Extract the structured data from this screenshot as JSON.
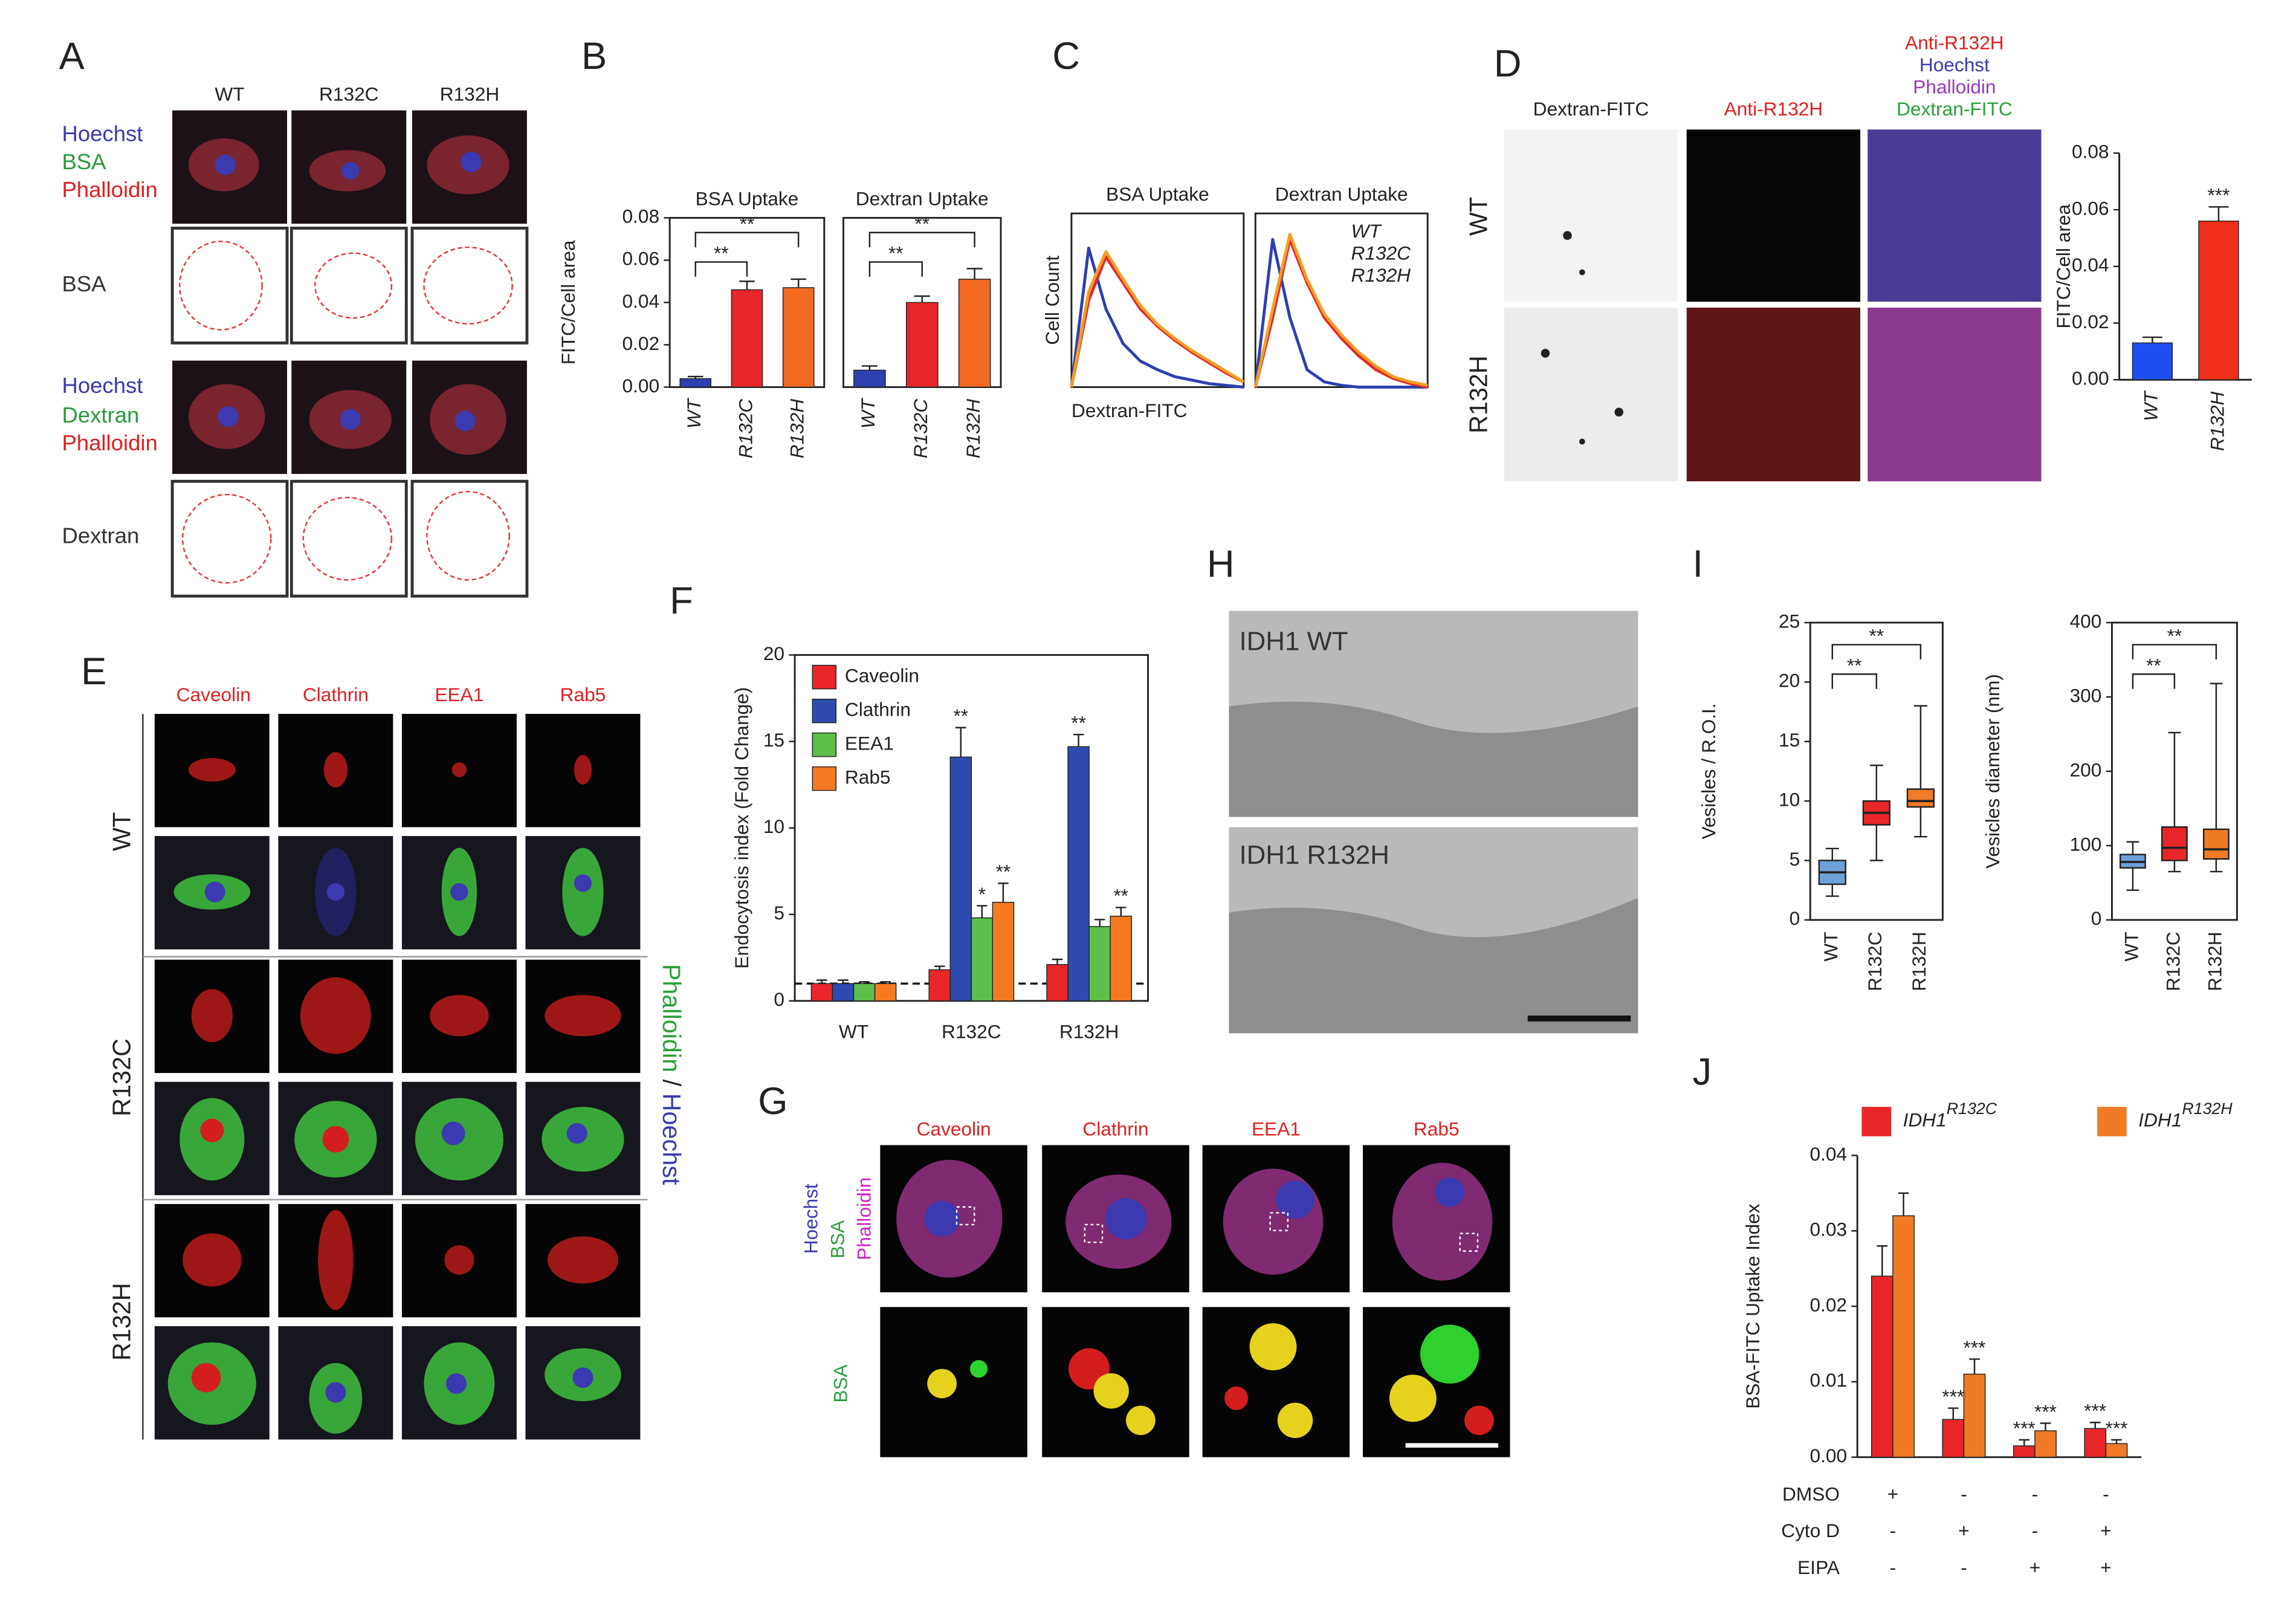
{
  "letters": [
    "A",
    "B",
    "C",
    "D",
    "E",
    "F",
    "G",
    "H",
    "I",
    "J"
  ],
  "panel_a": {
    "columns": [
      "WT",
      "R132C",
      "R132H"
    ],
    "rows": [
      [
        "Hoechst",
        "BSA",
        "Phalloidin"
      ],
      [
        "BSA"
      ],
      [
        "Hoechst",
        "Dextran",
        "Phalloidin"
      ],
      [
        "Dextran"
      ]
    ]
  },
  "panel_d": {
    "columns": [
      "Dextran-FITC",
      "Anti-R132H"
    ],
    "merged_column": [
      "Anti-R132H",
      "Hoechst",
      "Phalloidin",
      "Dextran-FITC"
    ],
    "rows": [
      "WT",
      "R132H"
    ]
  },
  "panel_e": {
    "columns": [
      "Caveolin",
      "Clathrin",
      "EEA1",
      "Rab5"
    ],
    "rows": [
      "WT",
      "R132C",
      "R132H"
    ],
    "side_label": [
      "Phalloidin",
      "/",
      "Hoechst"
    ]
  },
  "panel_g": {
    "columns": [
      "Caveolin",
      "Clathrin",
      "EEA1",
      "Rab5"
    ],
    "side_label": [
      "Hoechst",
      "BSA",
      "Phalloidin"
    ],
    "row_label": "BSA"
  },
  "panel_h": {
    "labels": [
      "IDH1 WT",
      "IDH1 R132H"
    ]
  },
  "chart_data": [
    {
      "type": "bar",
      "title": "BSA Uptake",
      "y_label": "FITC/Cell area",
      "categories": [
        "WT",
        "R132C",
        "R132H"
      ],
      "values": [
        0.004,
        0.046,
        0.047
      ],
      "errors": [
        0.001,
        0.004,
        0.004
      ],
      "colors": [
        "#2e3fb0",
        "#e8262a",
        "#f26a22"
      ],
      "ylim": [
        0,
        0.08
      ],
      "yticks": [
        {
          "value": 0,
          "label": "0.00"
        },
        {
          "value": 0.02,
          "label": "0.02"
        },
        {
          "value": 0.04,
          "label": "0.04"
        },
        {
          "value": 0.06,
          "label": "0.06"
        },
        {
          "value": 0.08,
          "label": "0.08"
        }
      ],
      "annotations": [
        "**",
        "**"
      ]
    },
    {
      "type": "bar",
      "title": "Dextran Uptake",
      "categories": [
        "WT",
        "R132C",
        "R132H"
      ],
      "values": [
        0.008,
        0.04,
        0.051
      ],
      "errors": [
        0.002,
        0.003,
        0.005
      ],
      "colors": [
        "#2e3fb0",
        "#e8262a",
        "#f26a22"
      ],
      "ylim": [
        0,
        0.08
      ],
      "annotations": [
        "**",
        "**"
      ]
    },
    {
      "type": "line",
      "title": "BSA Uptake",
      "y_label": "Cell Count",
      "x_label": "Dextran-FITC",
      "x": [
        0,
        1,
        2,
        3,
        4,
        5,
        6,
        7,
        8,
        9,
        10
      ],
      "xlim": [
        0,
        10
      ],
      "ylim": [
        0,
        1
      ],
      "series": [
        {
          "color": "#2e3fb0",
          "values": [
            0,
            0.8,
            0.45,
            0.25,
            0.15,
            0.1,
            0.06,
            0.04,
            0.02,
            0.01,
            0
          ]
        },
        {
          "color": "#e8262a",
          "values": [
            0,
            0.5,
            0.75,
            0.6,
            0.45,
            0.35,
            0.27,
            0.2,
            0.14,
            0.08,
            0.03
          ]
        },
        {
          "color": "#f2a022",
          "values": [
            0,
            0.55,
            0.78,
            0.62,
            0.47,
            0.36,
            0.28,
            0.21,
            0.15,
            0.09,
            0.03
          ]
        }
      ]
    },
    {
      "type": "line",
      "title": "Dextran Uptake",
      "x": [
        0,
        1,
        2,
        3,
        4,
        5,
        6,
        7,
        8,
        9,
        10
      ],
      "xlim": [
        0,
        10
      ],
      "ylim": [
        0,
        1
      ],
      "series": [
        {
          "name": "WT",
          "color": "#2e3fb0",
          "values": [
            0,
            0.85,
            0.4,
            0.1,
            0.03,
            0.01,
            0,
            0,
            0,
            0,
            0
          ]
        },
        {
          "name": "R132C",
          "color": "#e8262a",
          "values": [
            0,
            0.4,
            0.85,
            0.6,
            0.4,
            0.28,
            0.18,
            0.1,
            0.05,
            0.02,
            0
          ]
        },
        {
          "name": "R132H",
          "color": "#f2a022",
          "values": [
            0,
            0.45,
            0.88,
            0.62,
            0.42,
            0.3,
            0.2,
            0.12,
            0.06,
            0.03,
            0.01
          ]
        }
      ]
    },
    {
      "type": "bar",
      "y_label": "FITC/Cell area",
      "categories": [
        "WT",
        "R132H"
      ],
      "values": [
        0.013,
        0.056
      ],
      "errors": [
        0.002,
        0.005
      ],
      "colors": [
        "#1f4ef0",
        "#f0301c"
      ],
      "significance": [
        null,
        "***"
      ],
      "ylim": [
        0,
        0.08
      ],
      "yticks": [
        {
          "value": 0,
          "label": "0.00"
        },
        {
          "value": 0.02,
          "label": "0.02"
        },
        {
          "value": 0.04,
          "label": "0.04"
        },
        {
          "value": 0.06,
          "label": "0.06"
        },
        {
          "value": 0.08,
          "label": "0.08"
        }
      ]
    },
    {
      "type": "bar",
      "y_label": "Endocytosis index (Fold Change)",
      "categories": [
        "WT",
        "R132C",
        "R132H"
      ],
      "reference_line": 1,
      "ylim": [
        0,
        20
      ],
      "yticks": [
        0,
        5,
        10,
        15,
        20
      ],
      "series": [
        {
          "name": "Caveolin",
          "color": "#e8262a",
          "values": [
            1,
            1.8,
            2.1
          ],
          "errors": [
            0.2,
            0.2,
            0.3
          ]
        },
        {
          "name": "Clathrin",
          "color": "#2e4bb0",
          "values": [
            1,
            14.1,
            14.7
          ],
          "errors": [
            0.2,
            1.7,
            0.7
          ],
          "significance": [
            null,
            "**",
            "**"
          ]
        },
        {
          "name": "EEA1",
          "color": "#5cc04a",
          "values": [
            1,
            4.8,
            4.3
          ],
          "errors": [
            0.1,
            0.7,
            0.4
          ],
          "significance": [
            null,
            "*",
            null
          ]
        },
        {
          "name": "Rab5",
          "color": "#f57a22",
          "values": [
            1,
            5.7,
            4.9
          ],
          "errors": [
            0.1,
            1.1,
            0.5
          ],
          "significance": [
            null,
            "**",
            "**"
          ]
        }
      ]
    },
    {
      "type": "box",
      "y_label": "Vesicles / R.O.I.",
      "categories": [
        "WT",
        "R132C",
        "R132H"
      ],
      "colors": [
        "#6ea0d8",
        "#e8262a",
        "#f07a26"
      ],
      "boxes": {
        "min": [
          2,
          5,
          7
        ],
        "q1": [
          3,
          8,
          9.5
        ],
        "median": [
          4,
          9,
          10
        ],
        "q3": [
          5,
          10,
          11
        ],
        "max": [
          6,
          13,
          18
        ]
      },
      "ylim": [
        0,
        25
      ],
      "yticks": [
        0,
        5,
        10,
        15,
        20,
        25
      ],
      "annotations": [
        "**",
        "**"
      ]
    },
    {
      "type": "box",
      "y_label": "Vesicles diameter (nm)",
      "categories": [
        "WT",
        "R132C",
        "R132H"
      ],
      "colors": [
        "#6ea0d8",
        "#e8262a",
        "#f07a26"
      ],
      "boxes": {
        "min": [
          40,
          65,
          65
        ],
        "q1": [
          70,
          80,
          82
        ],
        "median": [
          78,
          97,
          95
        ],
        "q3": [
          88,
          125,
          122
        ],
        "max": [
          105,
          252,
          318
        ]
      },
      "ylim": [
        0,
        400
      ],
      "yticks": [
        0,
        100,
        200,
        300,
        400
      ],
      "annotations": [
        "**",
        "**"
      ]
    },
    {
      "type": "bar",
      "y_label": "BSA-FITC Uptake Index",
      "ylim": [
        0,
        0.04
      ],
      "yticks": [
        {
          "value": 0,
          "label": "0.00"
        },
        {
          "value": 0.01,
          "label": "0.01"
        },
        {
          "value": 0.02,
          "label": "0.02"
        },
        {
          "value": 0.03,
          "label": "0.03"
        },
        {
          "value": 0.04,
          "label": "0.04"
        }
      ],
      "series": [
        {
          "name": "IDH1",
          "superscript": "R132C",
          "color": "#e8262a",
          "values": [
            0.024,
            0.005,
            0.0015,
            0.0038
          ],
          "errors": [
            0.004,
            0.0015,
            0.0008,
            0.0008
          ],
          "significance": [
            null,
            "***",
            "***",
            "***"
          ]
        },
        {
          "name": "IDH1",
          "superscript": "R132H",
          "color": "#f07a26",
          "values": [
            0.032,
            0.011,
            0.0035,
            0.0018
          ],
          "errors": [
            0.003,
            0.002,
            0.001,
            0.0005
          ],
          "significance": [
            null,
            "***",
            "***",
            "***"
          ]
        }
      ],
      "treatments": [
        {
          "label": "DMSO",
          "marks": [
            "+",
            "-",
            "-",
            "-"
          ]
        },
        {
          "label": "Cyto D",
          "marks": [
            "-",
            "+",
            "-",
            "+"
          ]
        },
        {
          "label": "EIPA",
          "marks": [
            "-",
            "-",
            "+",
            "+"
          ]
        }
      ]
    }
  ]
}
